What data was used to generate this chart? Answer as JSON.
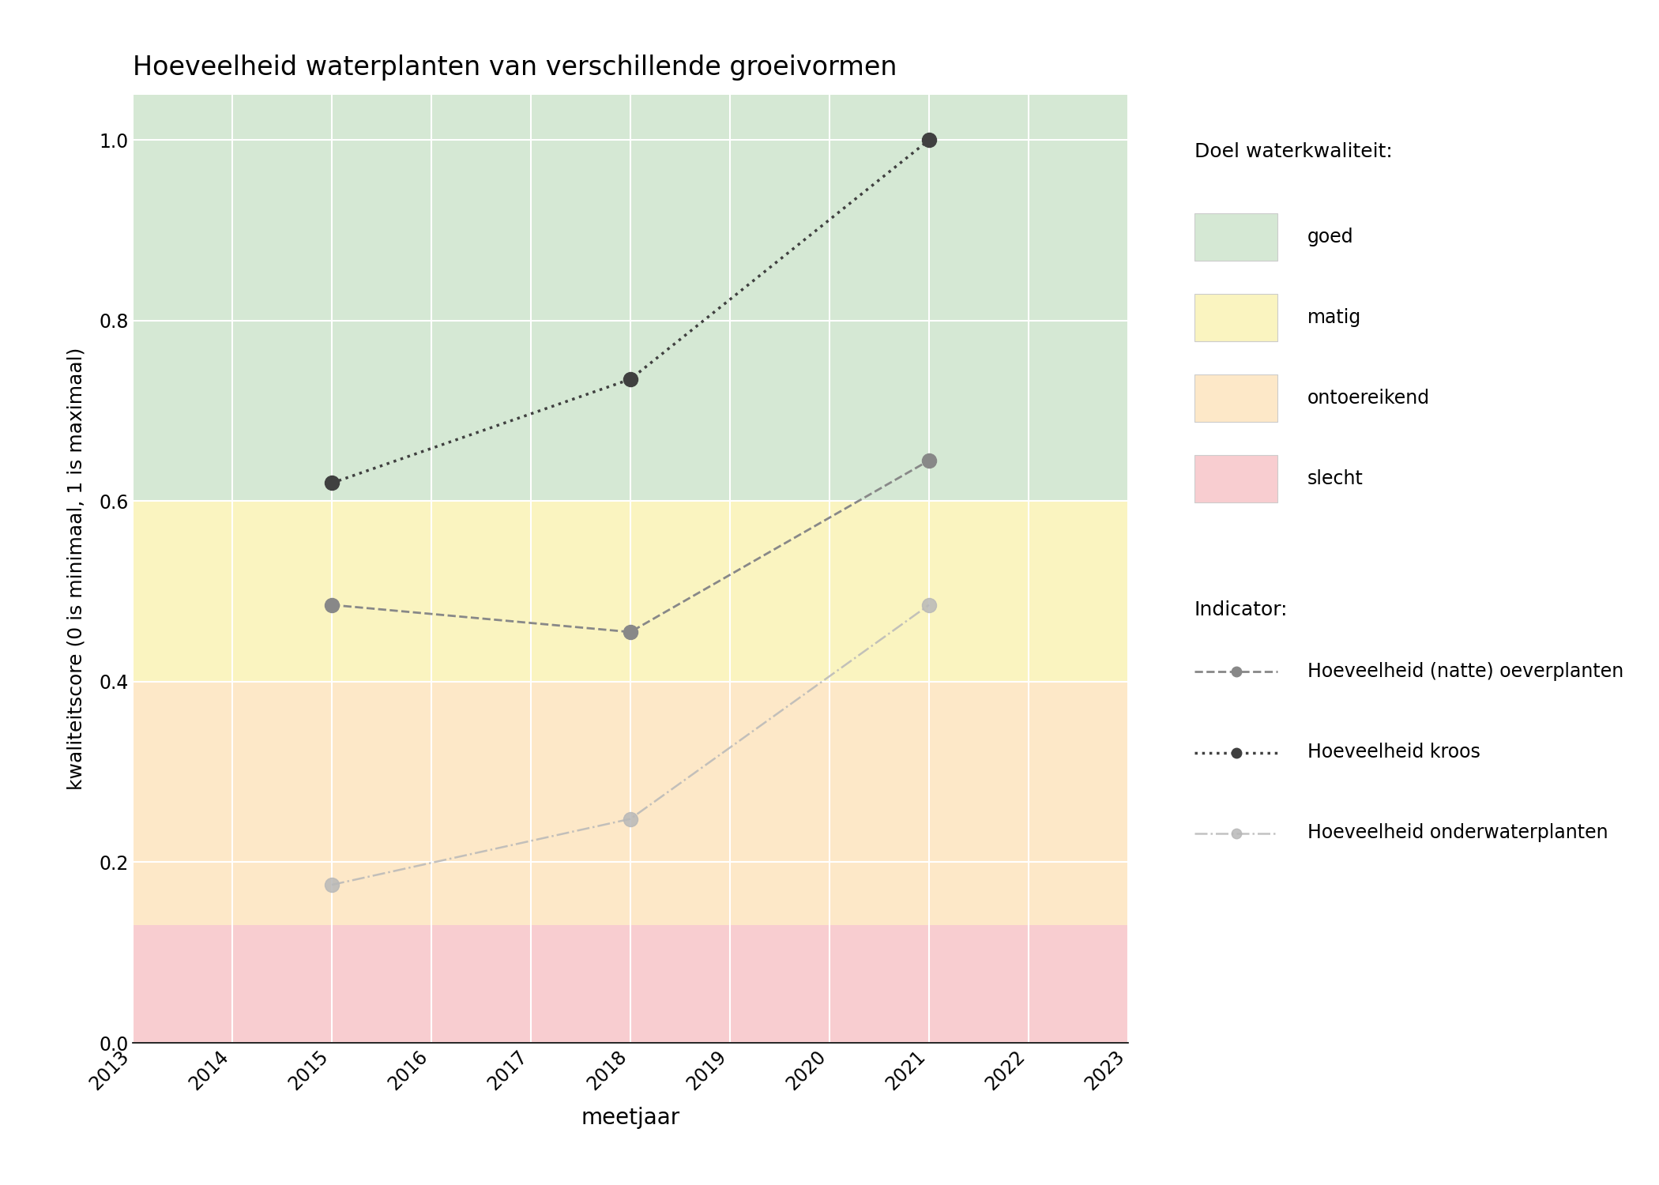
{
  "title": "Hoeveelheid waterplanten van verschillende groeivormen",
  "xlabel": "meetjaar",
  "ylabel": "kwaliteitscore (0 is minimaal, 1 is maximaal)",
  "xlim": [
    2013,
    2023
  ],
  "ylim": [
    0.0,
    1.05
  ],
  "xticks": [
    2013,
    2014,
    2015,
    2016,
    2017,
    2018,
    2019,
    2020,
    2021,
    2022,
    2023
  ],
  "yticks": [
    0.0,
    0.2,
    0.4,
    0.6,
    0.8,
    1.0
  ],
  "bg_color": "#ffffff",
  "plot_bg_color": "#ffffff",
  "zones": [
    {
      "ymin": 0.6,
      "ymax": 1.05,
      "color": "#d5e8d4",
      "label": "goed"
    },
    {
      "ymin": 0.4,
      "ymax": 0.6,
      "color": "#faf4c0",
      "label": "matig"
    },
    {
      "ymin": 0.13,
      "ymax": 0.4,
      "color": "#fde8c8",
      "label": "ontoereikend"
    },
    {
      "ymin": 0.0,
      "ymax": 0.13,
      "color": "#f8cdd0",
      "label": "slecht"
    }
  ],
  "series": [
    {
      "name": "Hoeveelheid (natte) oeverplanten",
      "years": [
        2015,
        2018,
        2021
      ],
      "values": [
        0.485,
        0.455,
        0.645
      ],
      "color": "#888888",
      "linestyle": "--",
      "marker": "o",
      "markersize": 13,
      "linewidth": 2.0,
      "alpha": 1.0,
      "zorder": 3
    },
    {
      "name": "Hoeveelheid kroos",
      "years": [
        2015,
        2018,
        2021
      ],
      "values": [
        0.62,
        0.735,
        1.0
      ],
      "color": "#404040",
      "linestyle": ":",
      "marker": "o",
      "markersize": 13,
      "linewidth": 2.5,
      "alpha": 1.0,
      "zorder": 4
    },
    {
      "name": "Hoeveelheid onderwaterplanten",
      "years": [
        2015,
        2018,
        2021
      ],
      "values": [
        0.175,
        0.248,
        0.485
      ],
      "color": "#b8b8b8",
      "linestyle": "-.",
      "marker": "o",
      "markersize": 13,
      "linewidth": 1.8,
      "alpha": 0.85,
      "zorder": 2
    }
  ],
  "legend_zone_title": "Doel waterkwaliteit:",
  "legend_indicator_title": "Indicator:",
  "legend_zone_colors": [
    "#d5e8d4",
    "#faf4c0",
    "#fde8c8",
    "#f8cdd0"
  ],
  "legend_zone_labels": [
    "goed",
    "matig",
    "ontoereikend",
    "slecht"
  ],
  "figsize": [
    21.0,
    15.0
  ],
  "dpi": 100
}
